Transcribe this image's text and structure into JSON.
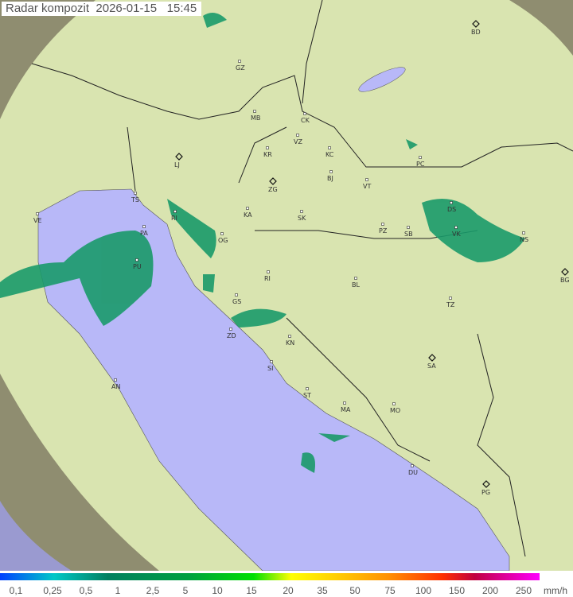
{
  "title": {
    "label": "Radar kompozit",
    "date": "2026-01-15",
    "time": "15:45"
  },
  "legend": {
    "unit": "mm/h",
    "ticks": [
      "0,1",
      "0,25",
      "0,5",
      "1",
      "2,5",
      "5",
      "10",
      "15",
      "20",
      "35",
      "50",
      "75",
      "100",
      "150",
      "200",
      "250"
    ]
  },
  "colors": {
    "sea": "#b8b8f8",
    "land": "#d9e4b0",
    "out_of_range": "#8a8a70"
  },
  "radar_sites": [
    {
      "code": "BD",
      "icon": "diamond-icon"
    },
    {
      "code": "LJ",
      "icon": "diamond-icon"
    },
    {
      "code": "ZG",
      "icon": "diamond-icon"
    },
    {
      "code": "SA",
      "icon": "diamond-icon"
    },
    {
      "code": "PG",
      "icon": "diamond-icon"
    },
    {
      "code": "BG",
      "icon": "diamond-icon"
    }
  ],
  "cities": [
    "GZ",
    "MB",
    "CK",
    "VZ",
    "KR",
    "KC",
    "BJ",
    "VT",
    "PC",
    "TS",
    "KA",
    "SK",
    "VE",
    "RI",
    "PA",
    "OG",
    "PU",
    "DS",
    "VK",
    "PZ",
    "SB",
    "NS",
    "RI",
    "BL",
    "TZ",
    "GS",
    "ZD",
    "KN",
    "SI",
    "AN",
    "ST",
    "MA",
    "MO",
    "DU"
  ]
}
